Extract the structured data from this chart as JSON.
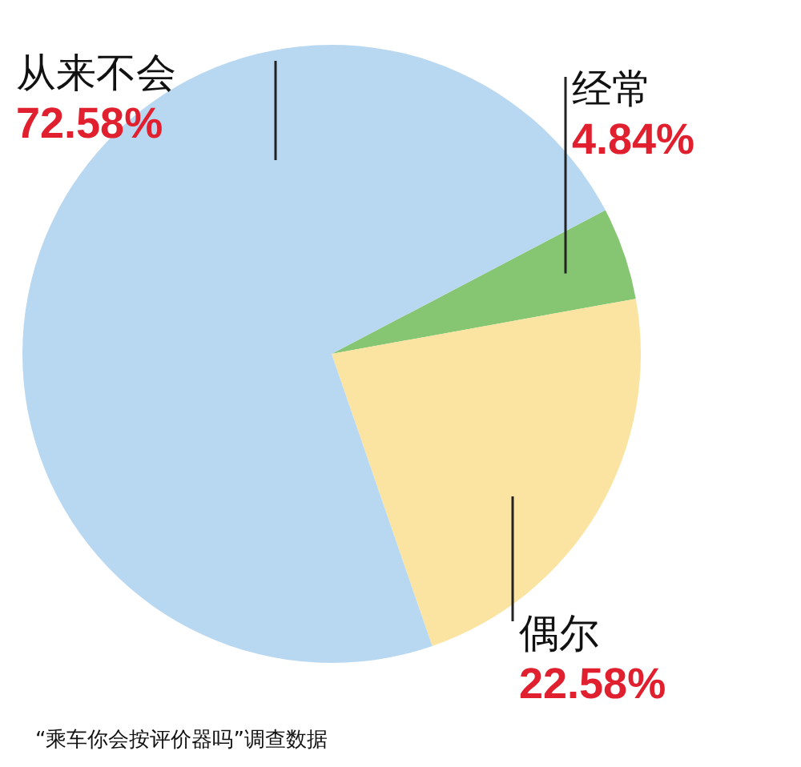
{
  "chart_data": {
    "type": "pie",
    "categories": [
      "经常",
      "偶尔",
      "从来不会"
    ],
    "values": [
      4.84,
      22.58,
      72.58
    ],
    "colors": [
      "#86c672",
      "#fbe4a2",
      "#b8d7f1"
    ],
    "value_labels": [
      "4.84%",
      "22.58%",
      "72.58%"
    ],
    "annotations": [
      "“乘车你会按评价器吗”调查数据"
    ]
  }
}
